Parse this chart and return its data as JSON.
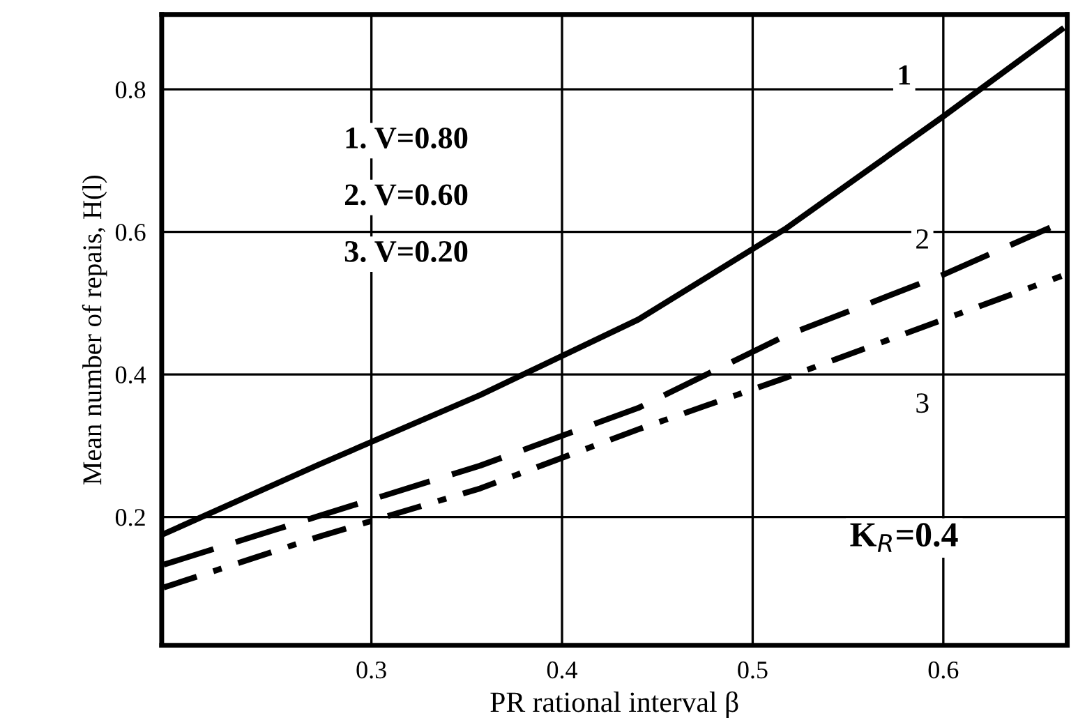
{
  "chart_data": {
    "type": "line",
    "xlabel": "PR rational interval β",
    "ylabel": "Mean number of repais, H(l)",
    "xlim": [
      0.19,
      0.665
    ],
    "xticks": [
      0.3,
      0.4,
      0.5,
      0.6
    ],
    "ylim": [
      0.02,
      0.905
    ],
    "yticks": [
      0.2,
      0.4,
      0.6,
      0.8
    ],
    "grid": true,
    "series": [
      {
        "name": "1",
        "color": "#000000",
        "line_style": "solid",
        "x": [
          0.191,
          0.272,
          0.357,
          0.44,
          0.517,
          0.6,
          0.662
        ],
        "values": [
          0.176,
          0.273,
          0.371,
          0.477,
          0.604,
          0.762,
          0.884
        ]
      },
      {
        "name": "2",
        "color": "#000000",
        "line_style": "dashed",
        "x": [
          0.191,
          0.272,
          0.357,
          0.44,
          0.517,
          0.6,
          0.656
        ],
        "values": [
          0.133,
          0.201,
          0.272,
          0.353,
          0.454,
          0.54,
          0.606
        ]
      },
      {
        "name": "3",
        "color": "#000000",
        "line_style": "dashdot",
        "x": [
          0.191,
          0.272,
          0.357,
          0.44,
          0.517,
          0.6,
          0.662
        ],
        "values": [
          0.101,
          0.172,
          0.24,
          0.323,
          0.395,
          0.477,
          0.538
        ]
      }
    ],
    "annotations": [
      "1. V=0.80",
      "2. V=0.60",
      "3. V=0.20",
      "K$_{R}$=0.4"
    ]
  }
}
